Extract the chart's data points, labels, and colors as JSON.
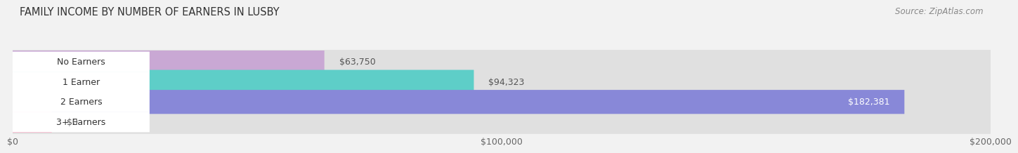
{
  "title": "FAMILY INCOME BY NUMBER OF EARNERS IN LUSBY",
  "source": "Source: ZipAtlas.com",
  "categories": [
    "No Earners",
    "1 Earner",
    "2 Earners",
    "3+ Earners"
  ],
  "values": [
    63750,
    94323,
    182381,
    0
  ],
  "bar_colors": [
    "#c9a8d4",
    "#5ecec8",
    "#8888d8",
    "#f4a8c0"
  ],
  "label_colors": [
    "#444444",
    "#444444",
    "#ffffff",
    "#444444"
  ],
  "xlim": [
    0,
    200000
  ],
  "xticks": [
    0,
    100000,
    200000
  ],
  "xtick_labels": [
    "$0",
    "$100,000",
    "$200,000"
  ],
  "bg_color": "#f2f2f2",
  "bar_bg_color": "#e0e0e0",
  "value_labels": [
    "$63,750",
    "$94,323",
    "$182,381",
    "$0"
  ]
}
